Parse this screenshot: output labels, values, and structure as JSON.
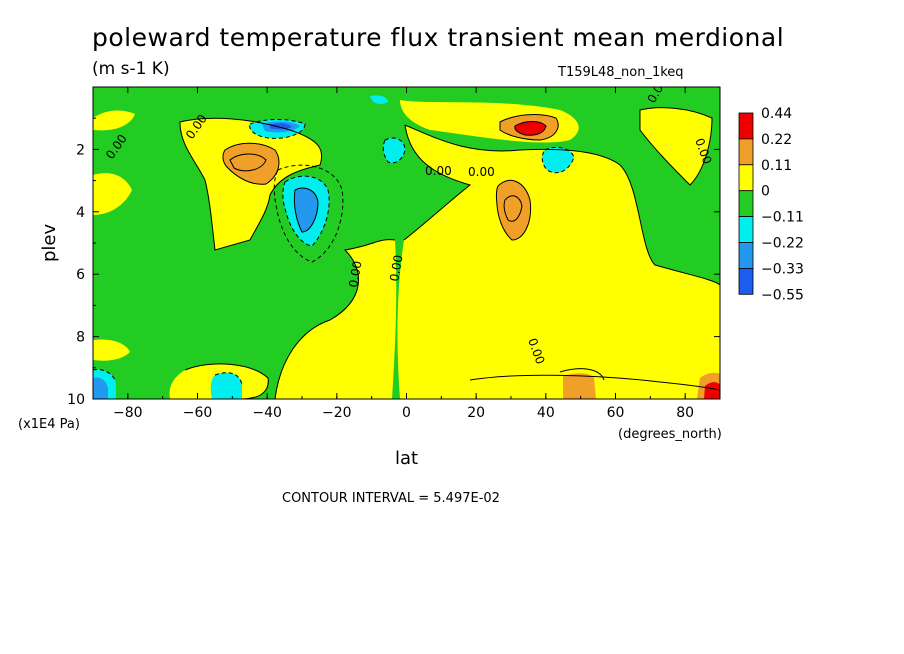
{
  "chart_data": {
    "type": "heatmap",
    "title": "poleward temperature flux transient mean merdional",
    "units": "(m s-1 K)",
    "run_label": "T159L48_non_1keq",
    "xlabel": "lat",
    "x_units": "(degrees_north)",
    "ylabel": "plev",
    "y_units": "(x1E4 Pa)",
    "xlim": [
      -90,
      90
    ],
    "ylim": [
      10,
      0
    ],
    "x_ticks": [
      "-80",
      "-60",
      "-40",
      "-20",
      "0",
      "20",
      "40",
      "60",
      "80"
    ],
    "y_ticks": [
      "2",
      "4",
      "6",
      "8",
      "10"
    ],
    "contour_interval_text": "CONTOUR INTERVAL = 5.497E-02",
    "contour_line_label": "0.00",
    "colorbar": {
      "levels": [
        "0.44",
        "0.22",
        "0.11",
        "0",
        "−0.11",
        "−0.22",
        "−0.33",
        "−0.55"
      ],
      "colors": [
        "#ee0000",
        "#f0a028",
        "#ffff00",
        "#22cc22",
        "#00eeee",
        "#2299ee",
        "#1c5cee"
      ]
    },
    "features": [
      {
        "lat": 33,
        "plev": 1.5,
        "value": 0.44
      },
      {
        "lat": -43,
        "plev": 2.5,
        "value": 0.22
      },
      {
        "lat": 32,
        "plev": 4.0,
        "value": 0.22
      },
      {
        "lat": 52,
        "plev": 9.6,
        "value": 0.22
      },
      {
        "lat": 86,
        "plev": 9.8,
        "value": 0.33
      },
      {
        "lat": -31,
        "plev": 3.9,
        "value": -0.33
      },
      {
        "lat": -37,
        "plev": 1.2,
        "value": -0.33
      },
      {
        "lat": -5,
        "plev": 2.0,
        "value": -0.22
      },
      {
        "lat": 43,
        "plev": 2.5,
        "value": -0.22
      },
      {
        "lat": -50,
        "plev": 9.7,
        "value": -0.22
      },
      {
        "lat": -87,
        "plev": 9.6,
        "value": -0.33
      }
    ]
  }
}
